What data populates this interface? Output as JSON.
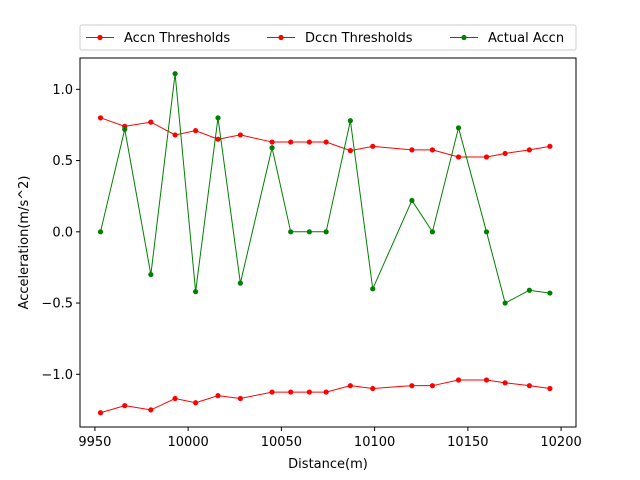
{
  "chart_data": {
    "type": "line",
    "xlabel": "Distance(m)",
    "ylabel": "Acceleration(m/s^2)",
    "xlim": [
      9942,
      10208
    ],
    "ylim": [
      -1.37,
      1.22
    ],
    "xticks": [
      9950,
      10000,
      10050,
      10100,
      10150,
      10200
    ],
    "xtick_labels": [
      "9950",
      "10000",
      "10050",
      "10100",
      "10150",
      "10200"
    ],
    "yticks": [
      -1.0,
      -0.5,
      0.0,
      0.5,
      1.0
    ],
    "ytick_labels": [
      "−1.0",
      "−0.5",
      "0.0",
      "0.5",
      "1.0"
    ],
    "grid": false,
    "legend_position": "top",
    "series": [
      {
        "name": "Accn Thresholds",
        "color": "#ff0000",
        "x": [
          9953,
          9966,
          9980,
          9993,
          10004,
          10016,
          10028,
          10045,
          10055,
          10065,
          10074,
          10087,
          10099,
          10120,
          10131,
          10145,
          10160,
          10170,
          10183,
          10194
        ],
        "y": [
          0.8,
          0.74,
          0.77,
          0.68,
          0.71,
          0.65,
          0.68,
          0.63,
          0.63,
          0.63,
          0.63,
          0.57,
          0.6,
          0.575,
          0.575,
          0.525,
          0.525,
          0.55,
          0.575,
          0.6
        ]
      },
      {
        "name": "Dccn Thresholds",
        "color": "#ff0000",
        "x": [
          9953,
          9966,
          9980,
          9993,
          10004,
          10016,
          10028,
          10045,
          10055,
          10065,
          10074,
          10087,
          10099,
          10120,
          10131,
          10145,
          10160,
          10170,
          10183,
          10194
        ],
        "y": [
          -1.27,
          -1.22,
          -1.25,
          -1.17,
          -1.2,
          -1.15,
          -1.17,
          -1.125,
          -1.125,
          -1.125,
          -1.125,
          -1.08,
          -1.1,
          -1.08,
          -1.08,
          -1.04,
          -1.04,
          -1.06,
          -1.08,
          -1.1
        ]
      },
      {
        "name": "Actual Accn",
        "color": "#008000",
        "x": [
          9953,
          9966,
          9980,
          9993,
          10004,
          10016,
          10028,
          10045,
          10055,
          10065,
          10074,
          10087,
          10099,
          10120,
          10131,
          10145,
          10160,
          10170,
          10183,
          10194
        ],
        "y": [
          0.0,
          0.72,
          -0.3,
          1.11,
          -0.42,
          0.8,
          -0.36,
          0.59,
          0.0,
          0.0,
          0.0,
          0.78,
          -0.4,
          0.22,
          0.0,
          0.73,
          0.0,
          -0.5,
          -0.41,
          -0.43
        ]
      }
    ]
  }
}
